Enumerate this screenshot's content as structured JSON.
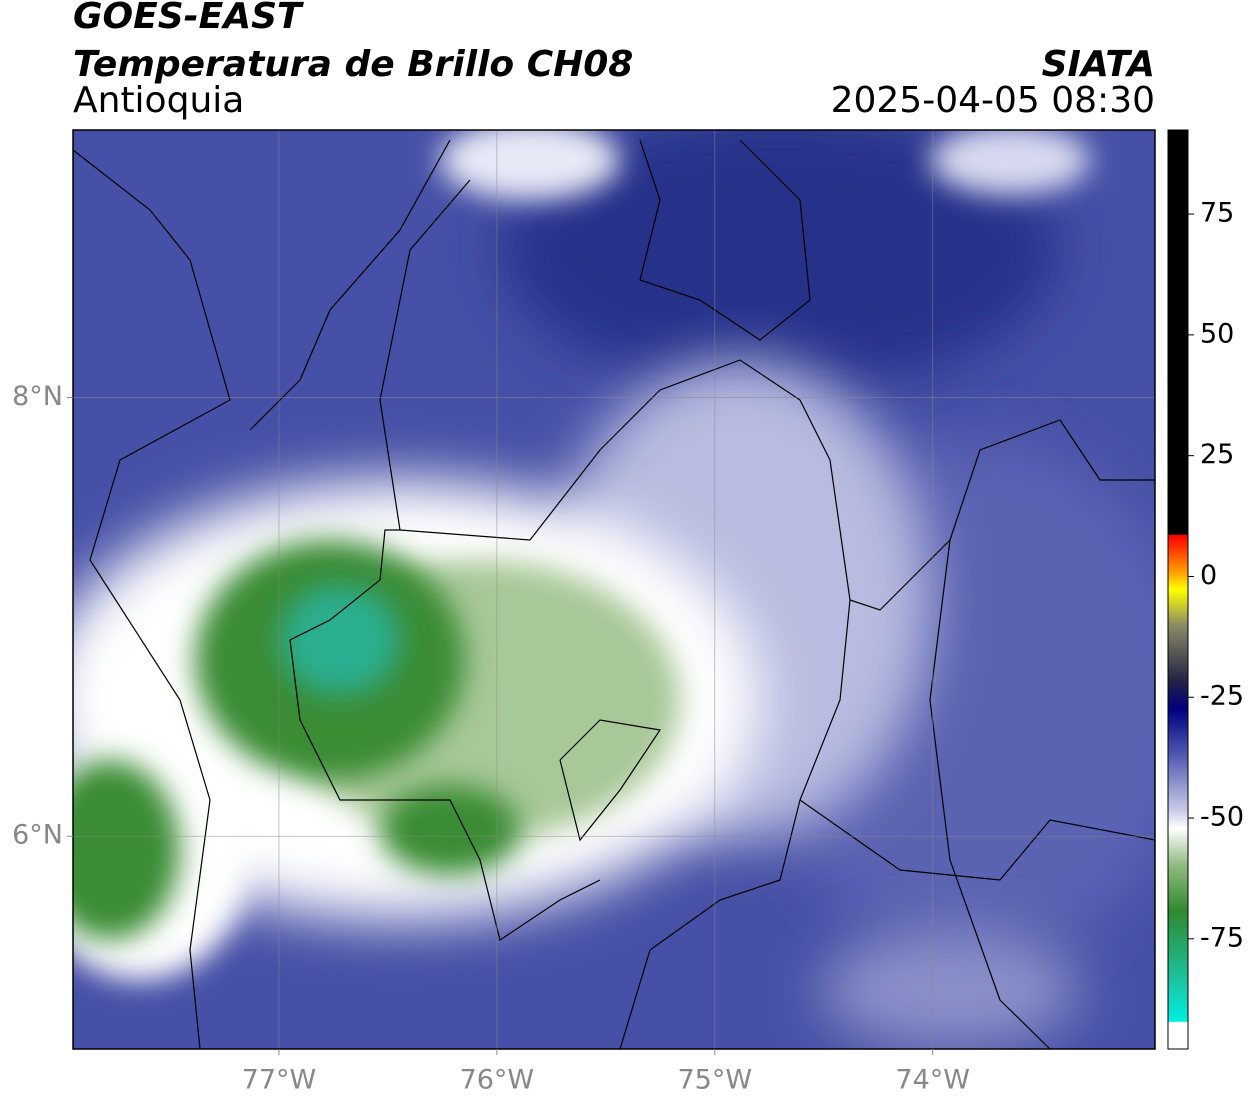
{
  "header": {
    "title": "GOES-EAST",
    "subtitle": "Temperatura de Brillo CH08",
    "region": "Antioquia",
    "source": "SIATA",
    "datetime": "2025-04-05 08:30"
  },
  "map": {
    "lon_lim": [
      -77.945,
      -72.98
    ],
    "lat_lim": [
      5.03,
      9.22
    ],
    "lon_ticks": [
      {
        "value": -77,
        "label": "77°W"
      },
      {
        "value": -76,
        "label": "76°W"
      },
      {
        "value": -75,
        "label": "75°W"
      },
      {
        "value": -74,
        "label": "74°W"
      }
    ],
    "lat_ticks": [
      {
        "value": 8,
        "label": "8°N"
      },
      {
        "value": 6,
        "label": "6°N"
      }
    ],
    "grid": true
  },
  "colorbar": {
    "lim": [
      -97.8,
      92.4
    ],
    "ticks": [
      75,
      50,
      25,
      0,
      -25,
      -50,
      -75
    ]
  }
}
